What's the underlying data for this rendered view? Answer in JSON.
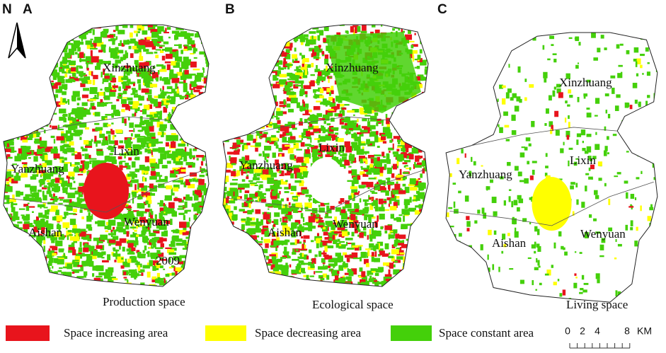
{
  "north": "N",
  "panels": [
    {
      "letter": "A",
      "caption": "Production space",
      "year": "2009",
      "places": [
        "Xinzhuang",
        "Lixin",
        "Yanzhuang",
        "Aishan",
        "Wenyuan"
      ]
    },
    {
      "letter": "B",
      "caption": "Ecological space",
      "places": [
        "Xinzhuang",
        "Lixin",
        "Yanzhuang",
        "Aishan",
        "Wenyuan"
      ]
    },
    {
      "letter": "C",
      "caption": "Living space",
      "places": [
        "Xinzhuang",
        "Lixin",
        "Yanzhuang",
        "Aishan",
        "Wenyuan"
      ]
    }
  ],
  "legend": [
    "Space increasing area",
    "Space decreasing area",
    "Space constant area"
  ],
  "scale_bar": {
    "labels": [
      "0",
      "2",
      "4",
      "8"
    ],
    "unit": "KM"
  }
}
